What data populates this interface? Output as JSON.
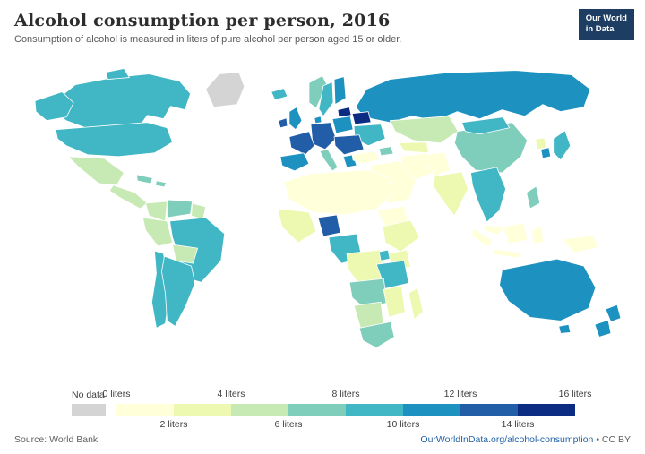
{
  "header": {
    "title": "Alcohol consumption per person, 2016",
    "subtitle": "Consumption of alcohol is measured in liters of pure alcohol per person aged 15 or older.",
    "logo": {
      "line1": "Our World",
      "line2": "in Data",
      "bg": "#1d3d63"
    }
  },
  "legend": {
    "no_data_label": "No data",
    "no_data_color": "#d4d4d4",
    "tick_labels": [
      "0 liters",
      "2 liters",
      "4 liters",
      "6 liters",
      "8 liters",
      "10 liters",
      "12 liters",
      "14 liters",
      "16 liters"
    ],
    "colors": [
      "#ffffd9",
      "#edf8b1",
      "#c7e9b4",
      "#7fcdbb",
      "#41b6c4",
      "#1d91c0",
      "#225ea8",
      "#0c2c84"
    ]
  },
  "footer": {
    "source": "Source: World Bank",
    "link": "OurWorldInData.org/alcohol-consumption",
    "license_suffix": "• CC BY"
  },
  "chart_data": {
    "type": "heatmap",
    "title": "Alcohol consumption per person, 2016",
    "unit": "liters of pure alcohol per person aged 15+",
    "bin_size": 2,
    "domain": [
      0,
      16
    ],
    "legend_position": "bottom",
    "regions": [
      {
        "name": "Greenland",
        "value": null
      },
      {
        "name": "Canada",
        "value": 8.9
      },
      {
        "name": "United States",
        "value": 9.8
      },
      {
        "name": "Mexico",
        "value": 4.4
      },
      {
        "name": "Central America",
        "value": 4.9
      },
      {
        "name": "Cuba",
        "value": 6.1
      },
      {
        "name": "Dominican Republic",
        "value": 6.9
      },
      {
        "name": "Colombia",
        "value": 4.9
      },
      {
        "name": "Venezuela",
        "value": 6.3
      },
      {
        "name": "Guyana",
        "value": 5.0
      },
      {
        "name": "Brazil",
        "value": 8.9
      },
      {
        "name": "Peru",
        "value": 5.7
      },
      {
        "name": "Bolivia",
        "value": 4.8
      },
      {
        "name": "Chile",
        "value": 9.3
      },
      {
        "name": "Argentina",
        "value": 9.8
      },
      {
        "name": "Iceland",
        "value": 9.1
      },
      {
        "name": "Ireland",
        "value": 13.0
      },
      {
        "name": "United Kingdom",
        "value": 11.5
      },
      {
        "name": "Norway",
        "value": 7.2
      },
      {
        "name": "Sweden",
        "value": 9.2
      },
      {
        "name": "Finland",
        "value": 10.4
      },
      {
        "name": "Denmark",
        "value": 10.3
      },
      {
        "name": "France",
        "value": 12.9
      },
      {
        "name": "Germany",
        "value": 13.5
      },
      {
        "name": "Spain",
        "value": 11.1
      },
      {
        "name": "Italy",
        "value": 7.6
      },
      {
        "name": "Poland",
        "value": 11.6
      },
      {
        "name": "Lithuania",
        "value": 15.0
      },
      {
        "name": "Belarus",
        "value": 15.1
      },
      {
        "name": "Ukraine",
        "value": 8.9
      },
      {
        "name": "Romania",
        "value": 12.6
      },
      {
        "name": "Greece",
        "value": 10.4
      },
      {
        "name": "Russia",
        "value": 11.7
      },
      {
        "name": "Turkey",
        "value": 1.4
      },
      {
        "name": "Georgia",
        "value": 7.1
      },
      {
        "name": "Saudi Arabia",
        "value": 0.2
      },
      {
        "name": "Iran",
        "value": 0.8
      },
      {
        "name": "Kazakhstan",
        "value": 5.6
      },
      {
        "name": "Uzbekistan",
        "value": 2.6
      },
      {
        "name": "Pakistan",
        "value": 0.2
      },
      {
        "name": "India",
        "value": 2.8
      },
      {
        "name": "China",
        "value": 7.2
      },
      {
        "name": "Mongolia",
        "value": 8.3
      },
      {
        "name": "Thailand",
        "value": 8.3
      },
      {
        "name": "Malaysia",
        "value": 0.9
      },
      {
        "name": "Indonesia",
        "value": 0.8
      },
      {
        "name": "Philippines",
        "value": 6.4
      },
      {
        "name": "Japan",
        "value": 8.0
      },
      {
        "name": "South Korea",
        "value": 10.2
      },
      {
        "name": "North Korea",
        "value": 3.9
      },
      {
        "name": "Papua New Guinea",
        "value": 1.2
      },
      {
        "name": "Algeria",
        "value": 0.5
      },
      {
        "name": "Sudan",
        "value": 1.5
      },
      {
        "name": "West Africa",
        "value": 3.0
      },
      {
        "name": "Nigeria",
        "value": 13.4
      },
      {
        "name": "Central Africa",
        "value": 9.0
      },
      {
        "name": "Democratic Republic of Congo",
        "value": 3.2
      },
      {
        "name": "Ethiopia",
        "value": 2.9
      },
      {
        "name": "Kenya",
        "value": 3.3
      },
      {
        "name": "Uganda",
        "value": 9.5
      },
      {
        "name": "Tanzania",
        "value": 9.4
      },
      {
        "name": "Angola",
        "value": 6.4
      },
      {
        "name": "Mozambique",
        "value": 3.4
      },
      {
        "name": "Namibia",
        "value": 5.8
      },
      {
        "name": "South Africa",
        "value": 7.6
      },
      {
        "name": "Madagascar",
        "value": 2.3
      },
      {
        "name": "Australia",
        "value": 10.6
      },
      {
        "name": "New Zealand",
        "value": 10.1
      }
    ]
  }
}
